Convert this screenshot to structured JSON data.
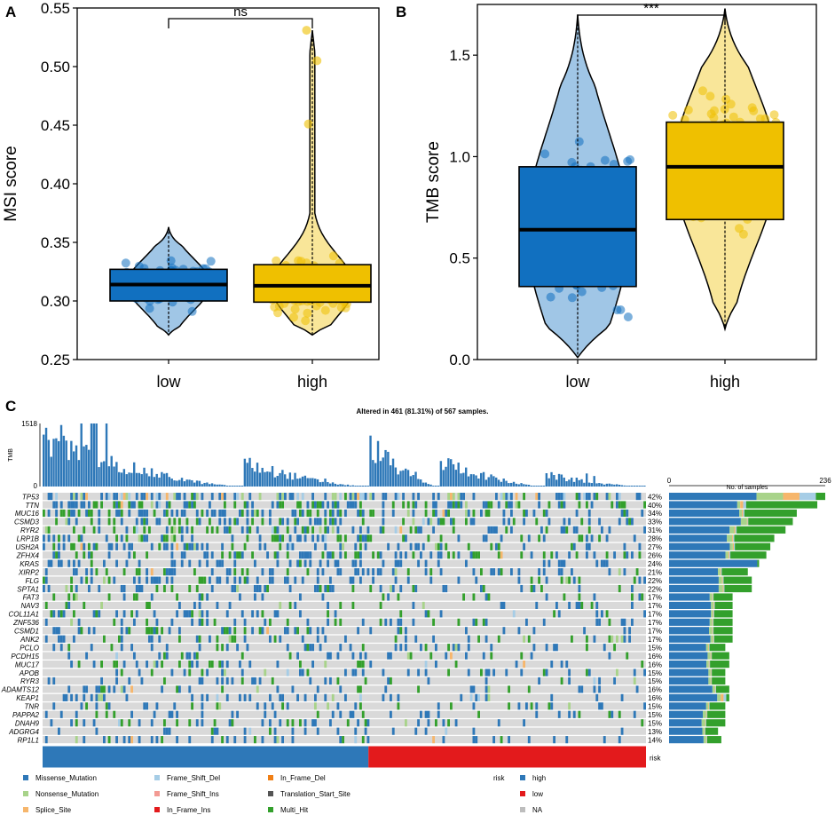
{
  "panel_labels": [
    "A",
    "B",
    "C"
  ],
  "colors": {
    "low": "#1170c0",
    "high": "#efc000",
    "Missense_Mutation": "#2e78b8",
    "Nonsense_Mutation": "#a8d38a",
    "Splice_Site": "#f6b66c",
    "Frame_Shift_Del": "#a6cde6",
    "Frame_Shift_Ins": "#f39a93",
    "In_Frame_Ins": "#e31a1c",
    "In_Frame_Del": "#f07f15",
    "Translation_Start_Site": "#555555",
    "Multi_Hit": "#33a02c",
    "NA": "#bdbdbd",
    "risk_high": "#2e78b8",
    "risk_low": "#e31a1c",
    "bg": "#d9d9d9"
  },
  "chart_data": [
    {
      "type": "violin-box",
      "panel": "A",
      "categories": [
        "low",
        "high"
      ],
      "ylabel": "MSI score",
      "ylim": [
        0.25,
        0.55
      ],
      "yticks": [
        "0.25",
        "0.30",
        "0.35",
        "0.40",
        "0.45",
        "0.50",
        "0.55"
      ],
      "significance": "ns",
      "boxes": [
        {
          "group": "low",
          "q1": 0.3,
          "median": 0.314,
          "q3": 0.327,
          "min": 0.271,
          "max": 0.363
        },
        {
          "group": "high",
          "q1": 0.299,
          "median": 0.313,
          "q3": 0.331,
          "min": 0.271,
          "max": 0.531
        }
      ],
      "outliers_high": [
        0.531,
        0.505,
        0.451
      ]
    },
    {
      "type": "violin-box",
      "panel": "B",
      "categories": [
        "low",
        "high"
      ],
      "ylabel": "TMB score",
      "ylim": [
        0.0,
        1.75
      ],
      "yticks": [
        "0.0",
        "0.5",
        "1.0",
        "1.5"
      ],
      "significance": "***",
      "boxes": [
        {
          "group": "low",
          "q1": 0.36,
          "median": 0.64,
          "q3": 0.95,
          "min": 0.01,
          "max": 1.7
        },
        {
          "group": "high",
          "q1": 0.69,
          "median": 0.95,
          "q3": 1.17,
          "min": 0.15,
          "max": 1.73
        }
      ]
    },
    {
      "type": "oncoplot",
      "panel": "C",
      "title": "Altered in 461 (81.31%) of 567 samples.",
      "tmb_axis": {
        "label": "TMB",
        "max": "1518",
        "min": "0"
      },
      "right_axis": {
        "label": "No. of samples",
        "min": "0",
        "max": "236"
      },
      "genes": [
        {
          "name": "TP53",
          "pct": "42%",
          "count": 236,
          "mis": 0.56,
          "non": 0.17,
          "mh": 0.06
        },
        {
          "name": "TTN",
          "pct": "40%",
          "count": 224,
          "mis": 0.46,
          "non": 0.02,
          "mh": 0.48
        },
        {
          "name": "MUC16",
          "pct": "34%",
          "count": 193,
          "mis": 0.55,
          "non": 0.02,
          "mh": 0.41
        },
        {
          "name": "CSMD3",
          "pct": "33%",
          "count": 187,
          "mis": 0.58,
          "non": 0.05,
          "mh": 0.36
        },
        {
          "name": "RYR2",
          "pct": "31%",
          "count": 176,
          "mis": 0.52,
          "non": 0.04,
          "mh": 0.42
        },
        {
          "name": "LRP1B",
          "pct": "28%",
          "count": 159,
          "mis": 0.55,
          "non": 0.05,
          "mh": 0.38
        },
        {
          "name": "USH2A",
          "pct": "27%",
          "count": 153,
          "mis": 0.6,
          "non": 0.03,
          "mh": 0.35
        },
        {
          "name": "ZFHX4",
          "pct": "26%",
          "count": 147,
          "mis": 0.58,
          "non": 0.03,
          "mh": 0.37
        },
        {
          "name": "KRAS",
          "pct": "24%",
          "count": 136,
          "mis": 0.98,
          "non": 0.0,
          "mh": 0.02
        },
        {
          "name": "XIRP2",
          "pct": "21%",
          "count": 119,
          "mis": 0.62,
          "non": 0.03,
          "mh": 0.33
        },
        {
          "name": "FLG",
          "pct": "22%",
          "count": 125,
          "mis": 0.6,
          "non": 0.04,
          "mh": 0.34
        },
        {
          "name": "SPTA1",
          "pct": "22%",
          "count": 125,
          "mis": 0.6,
          "non": 0.05,
          "mh": 0.33
        },
        {
          "name": "FAT3",
          "pct": "17%",
          "count": 96,
          "mis": 0.64,
          "non": 0.04,
          "mh": 0.3
        },
        {
          "name": "NAV3",
          "pct": "17%",
          "count": 96,
          "mis": 0.66,
          "non": 0.04,
          "mh": 0.28
        },
        {
          "name": "COL11A1",
          "pct": "17%",
          "count": 96,
          "mis": 0.66,
          "non": 0.03,
          "mh": 0.29
        },
        {
          "name": "ZNF536",
          "pct": "17%",
          "count": 96,
          "mis": 0.64,
          "non": 0.04,
          "mh": 0.3
        },
        {
          "name": "CSMD1",
          "pct": "17%",
          "count": 96,
          "mis": 0.63,
          "non": 0.05,
          "mh": 0.3
        },
        {
          "name": "ANK2",
          "pct": "17%",
          "count": 96,
          "mis": 0.65,
          "non": 0.04,
          "mh": 0.29
        },
        {
          "name": "PCLO",
          "pct": "15%",
          "count": 85,
          "mis": 0.66,
          "non": 0.04,
          "mh": 0.28
        },
        {
          "name": "PCDH15",
          "pct": "16%",
          "count": 91,
          "mis": 0.64,
          "non": 0.05,
          "mh": 0.29
        },
        {
          "name": "MUC17",
          "pct": "16%",
          "count": 91,
          "mis": 0.62,
          "non": 0.04,
          "mh": 0.32
        },
        {
          "name": "APOB",
          "pct": "15%",
          "count": 85,
          "mis": 0.7,
          "non": 0.04,
          "mh": 0.24
        },
        {
          "name": "RYR3",
          "pct": "15%",
          "count": 85,
          "mis": 0.7,
          "non": 0.04,
          "mh": 0.24
        },
        {
          "name": "ADAMTS12",
          "pct": "16%",
          "count": 91,
          "mis": 0.72,
          "non": 0.04,
          "mh": 0.22
        },
        {
          "name": "KEAP1",
          "pct": "16%",
          "count": 91,
          "mis": 0.8,
          "non": 0.06,
          "mh": 0.05
        },
        {
          "name": "TNR",
          "pct": "15%",
          "count": 85,
          "mis": 0.66,
          "non": 0.04,
          "mh": 0.28
        },
        {
          "name": "PAPPA2",
          "pct": "15%",
          "count": 85,
          "mis": 0.6,
          "non": 0.06,
          "mh": 0.32
        },
        {
          "name": "DNAH9",
          "pct": "15%",
          "count": 85,
          "mis": 0.58,
          "non": 0.06,
          "mh": 0.34
        },
        {
          "name": "ADGRG4",
          "pct": "13%",
          "count": 74,
          "mis": 0.68,
          "non": 0.04,
          "mh": 0.26
        },
        {
          "name": "RP1L1",
          "pct": "14%",
          "count": 79,
          "mis": 0.66,
          "non": 0.05,
          "mh": 0.27
        }
      ],
      "risk_label": "risk",
      "risk_split": {
        "high_fraction": 0.54
      },
      "legend": {
        "mutations": [
          {
            "key": "Missense_Mutation",
            "label": "Missense_Mutation"
          },
          {
            "key": "Nonsense_Mutation",
            "label": "Nonsense_Mutation"
          },
          {
            "key": "Splice_Site",
            "label": "Splice_Site"
          },
          {
            "key": "Frame_Shift_Del",
            "label": "Frame_Shift_Del"
          },
          {
            "key": "Frame_Shift_Ins",
            "label": "Frame_Shift_Ins"
          },
          {
            "key": "In_Frame_Ins",
            "label": "In_Frame_Ins"
          },
          {
            "key": "In_Frame_Del",
            "label": "In_Frame_Del"
          },
          {
            "key": "Translation_Start_Site",
            "label": "Translation_Start_Site"
          },
          {
            "key": "Multi_Hit",
            "label": "Multi_Hit"
          }
        ],
        "risk_title": "risk",
        "risk": [
          {
            "key": "risk_high",
            "label": "high"
          },
          {
            "key": "risk_low",
            "label": "low"
          },
          {
            "key": "NA",
            "label": "NA"
          }
        ]
      }
    }
  ]
}
